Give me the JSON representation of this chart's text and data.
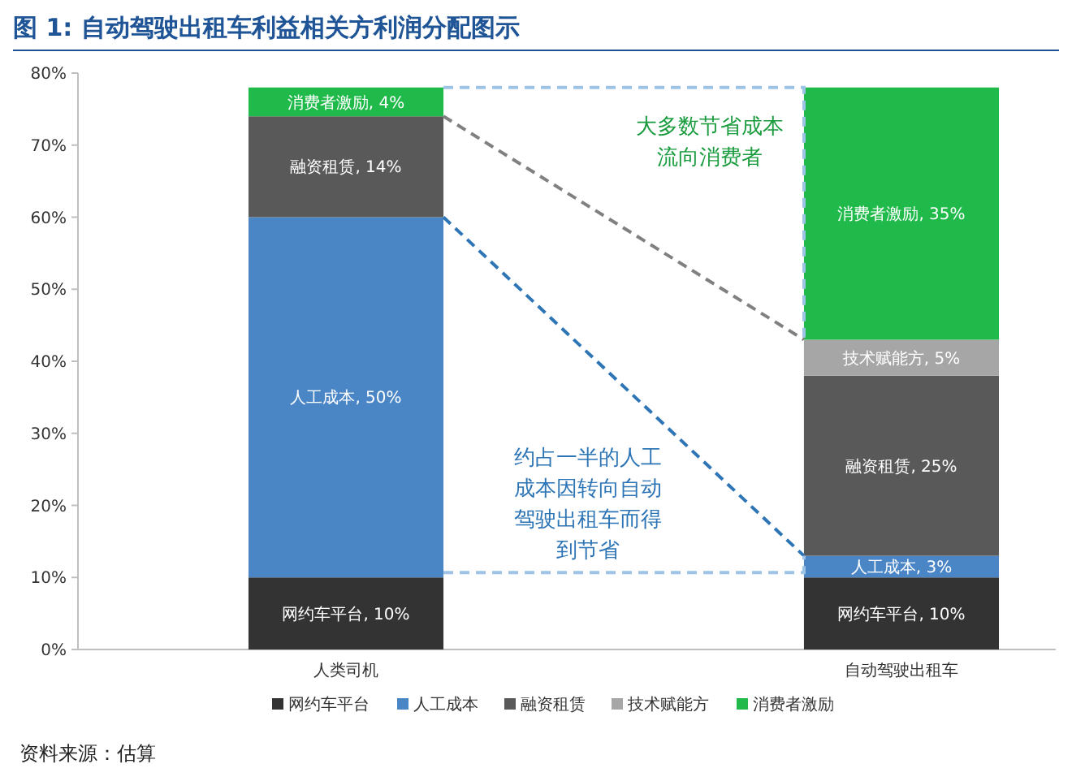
{
  "chart_data": {
    "type": "bar",
    "title": "图 1: 自动驾驶出租车利益相关方利润分配图示",
    "categories": [
      "人类司机",
      "自动驾驶出租车"
    ],
    "stacked": true,
    "series": [
      {
        "name": "网约车平台",
        "color": "#333333",
        "values": [
          10,
          10
        ],
        "value_labels": [
          "网约车平台, 10%",
          "网约车平台, 10%"
        ]
      },
      {
        "name": "人工成本",
        "color": "#4a86c6",
        "values": [
          50,
          3
        ],
        "value_labels": [
          "人工成本, 50%",
          "人工成本, 3%"
        ]
      },
      {
        "name": "融资租赁",
        "color": "#595959",
        "values": [
          14,
          25
        ],
        "value_labels": [
          "融资租赁, 14%",
          "融资租赁, 25%"
        ]
      },
      {
        "name": "技术赋能方",
        "color": "#a6a6a6",
        "values": [
          null,
          5
        ],
        "value_labels": [
          null,
          "技术赋能方, 5%"
        ]
      },
      {
        "name": "消费者激励",
        "color": "#1fba4a",
        "values": [
          4,
          35
        ],
        "value_labels": [
          "消费者激励, 4%",
          "消费者激励, 35%"
        ]
      }
    ],
    "ylim": [
      0,
      80
    ],
    "yticks": [
      {
        "value": 0,
        "label": "0%"
      },
      {
        "value": 10,
        "label": "10%"
      },
      {
        "value": 20,
        "label": "20%"
      },
      {
        "value": 30,
        "label": "30%"
      },
      {
        "value": 40,
        "label": "40%"
      },
      {
        "value": 50,
        "label": "50%"
      },
      {
        "value": 60,
        "label": "60%"
      },
      {
        "value": 70,
        "label": "70%"
      },
      {
        "value": 80,
        "label": "80%"
      }
    ],
    "legend": "bottom",
    "annotations": [
      "大多数节省成本流向消费者",
      "约占一半的人工成本因转向自动驾驶出租车而得到节省",
      "资料来源：估算"
    ]
  }
}
